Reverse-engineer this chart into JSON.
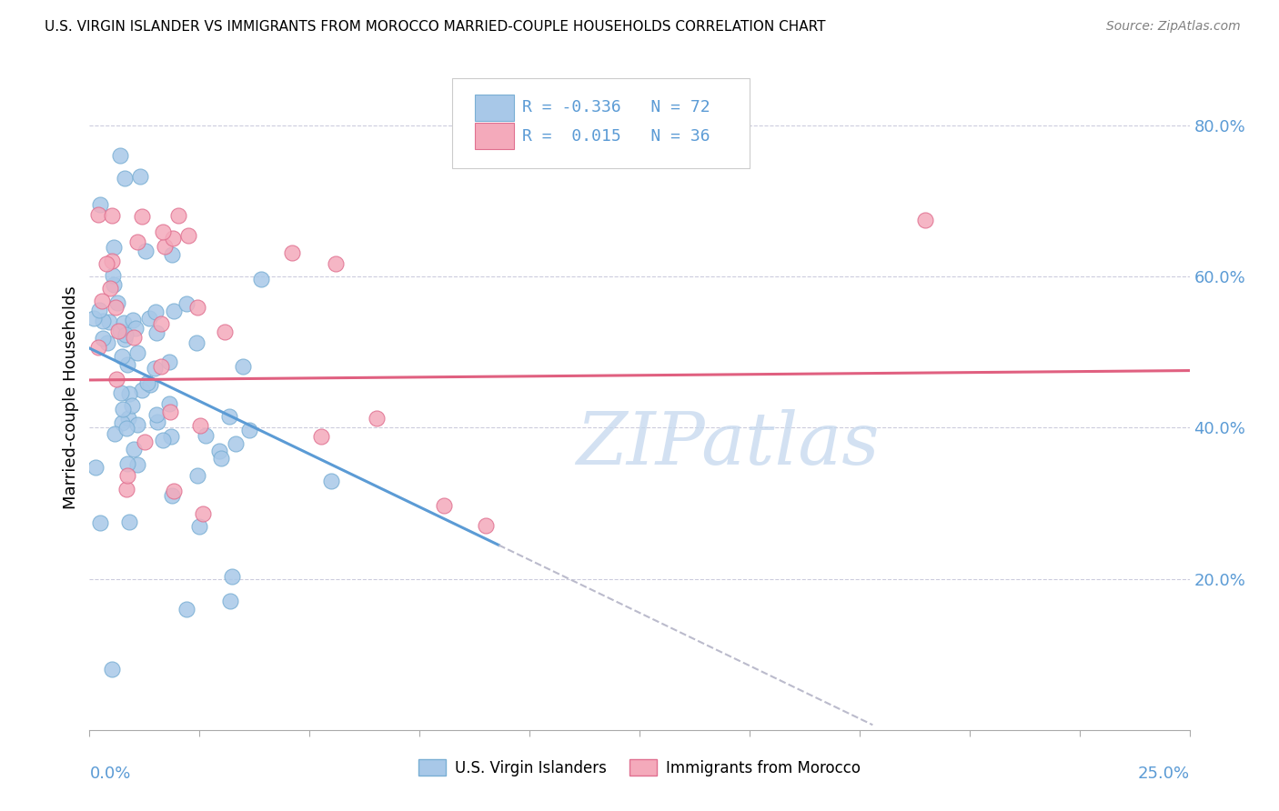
{
  "title": "U.S. VIRGIN ISLANDER VS IMMIGRANTS FROM MOROCCO MARRIED-COUPLE HOUSEHOLDS CORRELATION CHART",
  "source": "Source: ZipAtlas.com",
  "ylabel": "Married-couple Households",
  "ylabel_ticks": [
    "20.0%",
    "40.0%",
    "60.0%",
    "80.0%"
  ],
  "ylabel_tick_vals": [
    0.2,
    0.4,
    0.6,
    0.8
  ],
  "xlim": [
    0.0,
    0.25
  ],
  "ylim": [
    0.0,
    0.88
  ],
  "legend_R1": "-0.336",
  "legend_N1": "72",
  "legend_R2": "0.015",
  "legend_N2": "36",
  "color_blue": "#A8C8E8",
  "color_blue_edge": "#7AAFD4",
  "color_pink": "#F4AABB",
  "color_pink_edge": "#E07090",
  "color_blue_line": "#5B9BD5",
  "color_pink_line": "#E06080",
  "color_dashed": "#BBBBCC",
  "watermark_color": "#C5D8EE",
  "blue_slope": -2.8,
  "blue_intercept": 0.505,
  "blue_line_xstart": 0.0,
  "blue_line_xend": 0.093,
  "blue_dash_xstart": 0.093,
  "blue_dash_xend": 0.178,
  "pink_slope": 0.05,
  "pink_intercept": 0.463,
  "pink_line_xstart": 0.0,
  "pink_line_xend": 0.25
}
